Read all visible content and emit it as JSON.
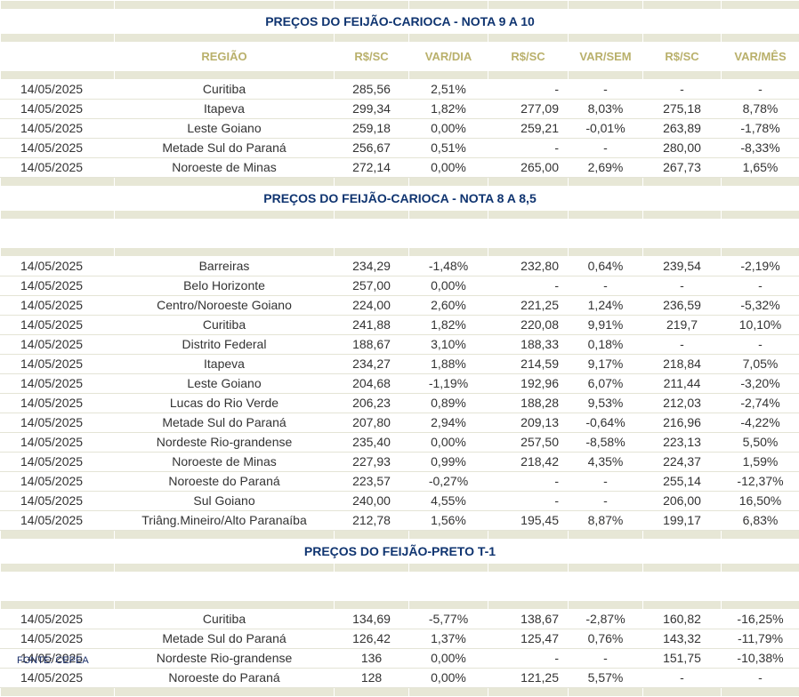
{
  "columns": [
    "REGIÃO",
    "R$/SC",
    "VAR/DIA",
    "R$/SC",
    "VAR/SEM",
    "R$/SC",
    "VAR/MÊS"
  ],
  "sections": [
    {
      "title": "PREÇOS DO FEIJÃO-CARIOCA - NOTA 9 A 10",
      "show_header": true,
      "rows": [
        {
          "date": "14/05/2025",
          "region": "Curitiba",
          "price_day": "285,56",
          "var_day": "2,51%",
          "price_week": "-",
          "var_week": "-",
          "price_month": "-",
          "var_month": "-"
        },
        {
          "date": "14/05/2025",
          "region": "Itapeva",
          "price_day": "299,34",
          "var_day": "1,82%",
          "price_week": "277,09",
          "var_week": "8,03%",
          "price_month": "275,18",
          "var_month": "8,78%"
        },
        {
          "date": "14/05/2025",
          "region": "Leste Goiano",
          "price_day": "259,18",
          "var_day": "0,00%",
          "price_week": "259,21",
          "var_week": "-0,01%",
          "price_month": "263,89",
          "var_month": "-1,78%"
        },
        {
          "date": "14/05/2025",
          "region": "Metade Sul do Paraná",
          "price_day": "256,67",
          "var_day": "0,51%",
          "price_week": "-",
          "var_week": "-",
          "price_month": "280,00",
          "var_month": "-8,33%"
        },
        {
          "date": "14/05/2025",
          "region": "Noroeste de Minas",
          "price_day": "272,14",
          "var_day": "0,00%",
          "price_week": "265,00",
          "var_week": "2,69%",
          "price_month": "267,73",
          "var_month": "1,65%"
        }
      ]
    },
    {
      "title": "PREÇOS DO FEIJÃO-CARIOCA - NOTA 8 A 8,5",
      "show_header": false,
      "rows": [
        {
          "date": "14/05/2025",
          "region": "Barreiras",
          "price_day": "234,29",
          "var_day": "-1,48%",
          "price_week": "232,80",
          "var_week": "0,64%",
          "price_month": "239,54",
          "var_month": "-2,19%"
        },
        {
          "date": "14/05/2025",
          "region": "Belo Horizonte",
          "price_day": "257,00",
          "var_day": "0,00%",
          "price_week": "-",
          "var_week": "-",
          "price_month": "-",
          "var_month": "-"
        },
        {
          "date": "14/05/2025",
          "region": "Centro/Noroeste Goiano",
          "price_day": "224,00",
          "var_day": "2,60%",
          "price_week": "221,25",
          "var_week": "1,24%",
          "price_month": "236,59",
          "var_month": "-5,32%"
        },
        {
          "date": "14/05/2025",
          "region": "Curitiba",
          "price_day": "241,88",
          "var_day": "1,82%",
          "price_week": "220,08",
          "var_week": "9,91%",
          "price_month": "219,7",
          "var_month": "10,10%"
        },
        {
          "date": "14/05/2025",
          "region": "Distrito Federal",
          "price_day": "188,67",
          "var_day": "3,10%",
          "price_week": "188,33",
          "var_week": "0,18%",
          "price_month": "-",
          "var_month": "-"
        },
        {
          "date": "14/05/2025",
          "region": "Itapeva",
          "price_day": "234,27",
          "var_day": "1,88%",
          "price_week": "214,59",
          "var_week": "9,17%",
          "price_month": "218,84",
          "var_month": "7,05%"
        },
        {
          "date": "14/05/2025",
          "region": "Leste Goiano",
          "price_day": "204,68",
          "var_day": "-1,19%",
          "price_week": "192,96",
          "var_week": "6,07%",
          "price_month": "211,44",
          "var_month": "-3,20%"
        },
        {
          "date": "14/05/2025",
          "region": "Lucas do Rio Verde",
          "price_day": "206,23",
          "var_day": "0,89%",
          "price_week": "188,28",
          "var_week": "9,53%",
          "price_month": "212,03",
          "var_month": "-2,74%"
        },
        {
          "date": "14/05/2025",
          "region": "Metade Sul do Paraná",
          "price_day": "207,80",
          "var_day": "2,94%",
          "price_week": "209,13",
          "var_week": "-0,64%",
          "price_month": "216,96",
          "var_month": "-4,22%"
        },
        {
          "date": "14/05/2025",
          "region": "Nordeste Rio-grandense",
          "price_day": "235,40",
          "var_day": "0,00%",
          "price_week": "257,50",
          "var_week": "-8,58%",
          "price_month": "223,13",
          "var_month": "5,50%"
        },
        {
          "date": "14/05/2025",
          "region": "Noroeste de Minas",
          "price_day": "227,93",
          "var_day": "0,99%",
          "price_week": "218,42",
          "var_week": "4,35%",
          "price_month": "224,37",
          "var_month": "1,59%"
        },
        {
          "date": "14/05/2025",
          "region": "Noroeste do Paraná",
          "price_day": "223,57",
          "var_day": "-0,27%",
          "price_week": "-",
          "var_week": "-",
          "price_month": "255,14",
          "var_month": "-12,37%"
        },
        {
          "date": "14/05/2025",
          "region": "Sul Goiano",
          "price_day": "240,00",
          "var_day": "4,55%",
          "price_week": "-",
          "var_week": "-",
          "price_month": "206,00",
          "var_month": "16,50%"
        },
        {
          "date": "14/05/2025",
          "region": "Triâng.Mineiro/Alto Paranaíba",
          "price_day": "212,78",
          "var_day": "1,56%",
          "price_week": "195,45",
          "var_week": "8,87%",
          "price_month": "199,17",
          "var_month": "6,83%"
        }
      ]
    },
    {
      "title": "PREÇOS DO  FEIJÃO-PRETO  T-1",
      "show_header": false,
      "rows": [
        {
          "date": "14/05/2025",
          "region": "Curitiba",
          "price_day": "134,69",
          "var_day": "-5,77%",
          "price_week": "138,67",
          "var_week": "-2,87%",
          "price_month": "160,82",
          "var_month": "-16,25%"
        },
        {
          "date": "14/05/2025",
          "region": "Metade Sul do Paraná",
          "price_day": "126,42",
          "var_day": "1,37%",
          "price_week": "125,47",
          "var_week": "0,76%",
          "price_month": "143,32",
          "var_month": "-11,79%"
        },
        {
          "date": "14/05/2025",
          "region": "Nordeste Rio-grandense",
          "price_day": "136",
          "var_day": "0,00%",
          "price_week": "-",
          "var_week": "-",
          "price_month": "151,75",
          "var_month": "-10,38%"
        },
        {
          "date": "14/05/2025",
          "region": "Noroeste do Paraná",
          "price_day": "128",
          "var_day": "0,00%",
          "price_week": "121,25",
          "var_week": "5,57%",
          "price_month": "-",
          "var_month": "-"
        }
      ]
    }
  ],
  "footer": "FONTE: CEPEA",
  "colors": {
    "positive": "#28a746",
    "negative": "#a31b2b",
    "title": "#0f3470",
    "header": "#b9b06b",
    "band": "#e7e7d6"
  }
}
